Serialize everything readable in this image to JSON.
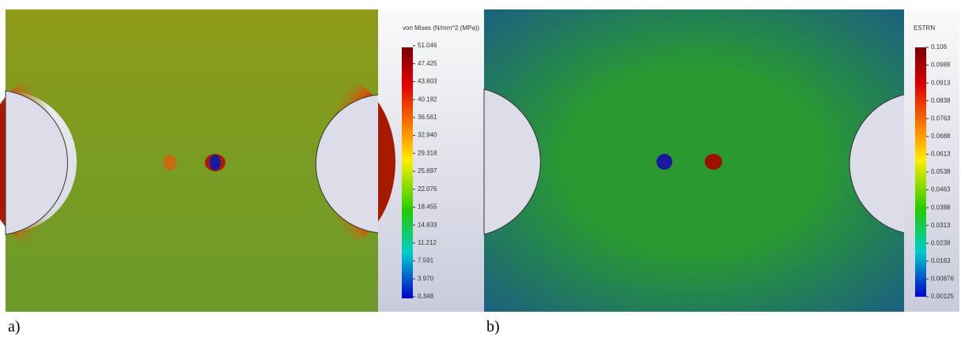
{
  "panels": [
    {
      "label": "a)",
      "legend_title": "von Mises (N/mm^2 (MPa))",
      "ticks": [
        "51.046",
        "47.425",
        "43.803",
        "40.182",
        "36.561",
        "32.940",
        "29.318",
        "25.697",
        "22.076",
        "18.455",
        "14.833",
        "11.212",
        "7.591",
        "3.970",
        "0.348"
      ]
    },
    {
      "label": "b)",
      "legend_title": "ESTRN",
      "ticks": [
        "0.106",
        "0.0988",
        "0.0913",
        "0.0838",
        "0.0763",
        "0.0688",
        "0.0613",
        "0.0538",
        "0.0463",
        "0.0388",
        "0.0313",
        "0.0238",
        "0.0163",
        "0.00876",
        "0.00125"
      ]
    }
  ]
}
